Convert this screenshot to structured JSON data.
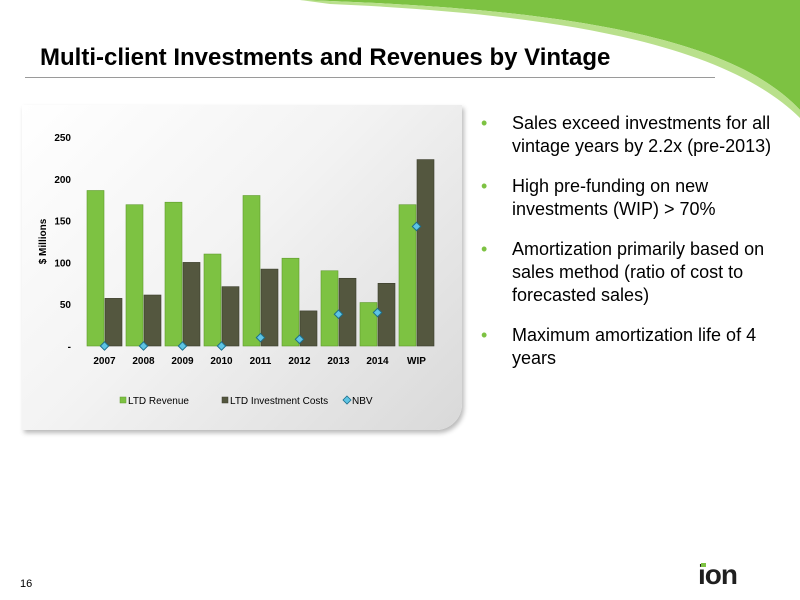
{
  "slide": {
    "title": "Multi-client Investments and Revenues by Vintage",
    "page_number": "16",
    "logo_text": "ion",
    "accent_color": "#7dc242"
  },
  "bullets": [
    "Sales exceed investments for all vintage years by 2.2x (pre-2013)",
    "High pre-funding on new investments (WIP) > 70%",
    "Amortization primarily based on sales method (ratio of cost to forecasted sales)",
    "Maximum amortization life of 4 years"
  ],
  "chart_data": {
    "type": "bar",
    "categories": [
      "2007",
      "2008",
      "2009",
      "2010",
      "2011",
      "2012",
      "2013",
      "2014",
      "WIP"
    ],
    "series": [
      {
        "name": "LTD Revenue",
        "type": "bar",
        "color": "#7dc242",
        "values": [
          186,
          169,
          172,
          110,
          180,
          105,
          90,
          52,
          169
        ]
      },
      {
        "name": "LTD Investment Costs",
        "type": "bar",
        "color": "#54573f",
        "values": [
          57,
          61,
          100,
          71,
          92,
          42,
          81,
          75,
          223
        ]
      },
      {
        "name": "NBV",
        "type": "scatter",
        "marker": "diamond",
        "color": "#5ec4e4",
        "values": [
          0,
          0,
          0,
          0,
          10,
          8,
          38,
          40,
          143
        ]
      }
    ],
    "ylabel": "$ Millions",
    "ylim": [
      0,
      250
    ],
    "yticks": [
      0,
      50,
      100,
      150,
      200,
      250
    ],
    "ytick_labels": [
      "-",
      "50",
      "100",
      "150",
      "200",
      "250"
    ],
    "grid": false,
    "legend_position": "bottom"
  }
}
